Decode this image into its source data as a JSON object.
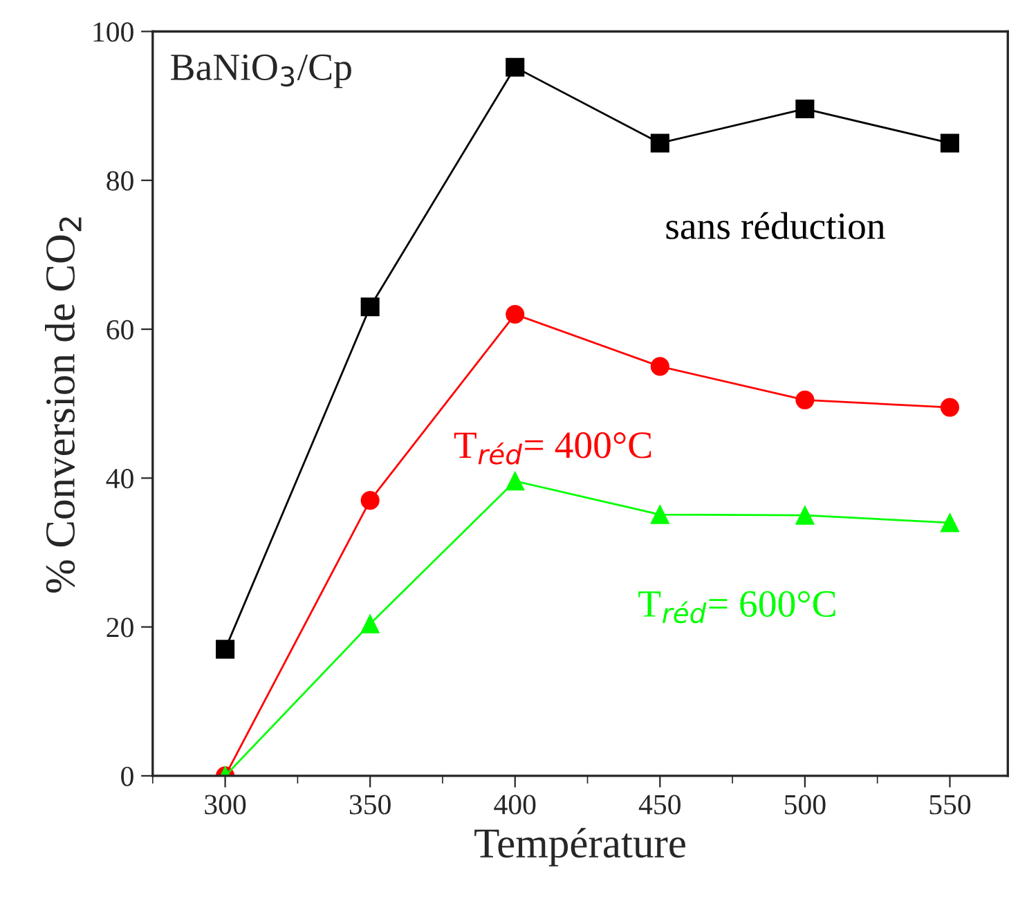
{
  "chart_data": {
    "type": "line",
    "xlabel": "Température",
    "ylabel": "% Conversion de CO$_{2}$",
    "annotations": [
      "BaNiO$_{3}$/Cp"
    ],
    "x": [
      300,
      350,
      400,
      450,
      500,
      550
    ],
    "series": [
      {
        "name": "sans réduction",
        "color": "#000000",
        "marker": "square",
        "values": [
          17,
          63,
          95.2,
          85,
          89.6,
          85
        ]
      },
      {
        "name": "T$_{réd}$= 400°C",
        "color": "#ff0000",
        "marker": "circle",
        "values": [
          0,
          37,
          62,
          55,
          50.5,
          49.5
        ]
      },
      {
        "name": "T$_{réd}$= 600°C",
        "color": "#00ff00",
        "marker": "triangle",
        "values": [
          0,
          20.4,
          39.6,
          35.1,
          35,
          34
        ]
      }
    ],
    "xlim": [
      275,
      570
    ],
    "xticks": [
      300,
      350,
      400,
      450,
      500,
      550
    ],
    "ylim": [
      0,
      100
    ],
    "yticks": [
      0,
      20,
      40,
      60,
      80,
      100
    ],
    "grid": false,
    "legend": false,
    "line_style": "solid"
  }
}
